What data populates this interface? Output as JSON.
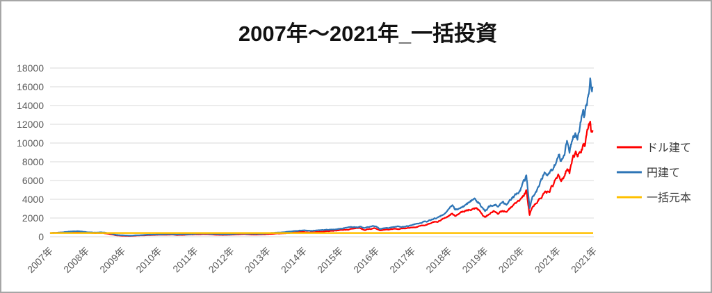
{
  "window": {
    "background_color": "#FFFFFF",
    "border_color": "#A6A6A6"
  },
  "chart_data": {
    "type": "line",
    "title": "2007年～2021年_一括投資",
    "xlabel": "",
    "ylabel": "",
    "ylim": [
      0,
      18000
    ],
    "x_range": [
      2007.0,
      2022.0
    ],
    "grid": true,
    "gridline_color": "#D9D9D9",
    "axis_label_color": "#595959",
    "legend_position": "right",
    "y_ticks": [
      0,
      2000,
      4000,
      6000,
      8000,
      10000,
      12000,
      14000,
      16000,
      18000
    ],
    "x_tick_labels": [
      "2007年",
      "2008年",
      "2009年",
      "2010年",
      "2011年",
      "2012年",
      "2013年",
      "2014年",
      "2015年",
      "2016年",
      "2017年",
      "2018年",
      "2019年",
      "2020年",
      "2021年",
      "2021年"
    ],
    "series": [
      {
        "name": "ドル建て",
        "color": "#FF0000",
        "points": [
          [
            2007.0,
            400
          ],
          [
            2007.15,
            420
          ],
          [
            2007.35,
            440
          ],
          [
            2007.55,
            480
          ],
          [
            2007.75,
            510
          ],
          [
            2007.9,
            460
          ],
          [
            2008.05,
            420
          ],
          [
            2008.25,
            380
          ],
          [
            2008.45,
            400
          ],
          [
            2008.6,
            330
          ],
          [
            2008.72,
            250
          ],
          [
            2008.8,
            160
          ],
          [
            2008.95,
            120
          ],
          [
            2009.1,
            100
          ],
          [
            2009.22,
            90
          ],
          [
            2009.4,
            130
          ],
          [
            2009.6,
            150
          ],
          [
            2009.75,
            175
          ],
          [
            2009.95,
            200
          ],
          [
            2010.15,
            215
          ],
          [
            2010.35,
            230
          ],
          [
            2010.5,
            190
          ],
          [
            2010.7,
            210
          ],
          [
            2010.9,
            240
          ],
          [
            2011.1,
            260
          ],
          [
            2011.3,
            270
          ],
          [
            2011.55,
            235
          ],
          [
            2011.75,
            195
          ],
          [
            2011.95,
            215
          ],
          [
            2012.15,
            255
          ],
          [
            2012.35,
            270
          ],
          [
            2012.55,
            245
          ],
          [
            2012.75,
            260
          ],
          [
            2012.95,
            285
          ],
          [
            2013.15,
            330
          ],
          [
            2013.4,
            380
          ],
          [
            2013.6,
            420
          ],
          [
            2013.8,
            480
          ],
          [
            2014.0,
            530
          ],
          [
            2014.15,
            500
          ],
          [
            2014.35,
            545
          ],
          [
            2014.6,
            590
          ],
          [
            2014.8,
            650
          ],
          [
            2015.0,
            700
          ],
          [
            2015.2,
            760
          ],
          [
            2015.4,
            840
          ],
          [
            2015.55,
            880
          ],
          [
            2015.68,
            720
          ],
          [
            2015.8,
            820
          ],
          [
            2015.95,
            860
          ],
          [
            2016.1,
            660
          ],
          [
            2016.3,
            760
          ],
          [
            2016.5,
            820
          ],
          [
            2016.7,
            860
          ],
          [
            2016.9,
            920
          ],
          [
            2017.1,
            1080
          ],
          [
            2017.3,
            1200
          ],
          [
            2017.5,
            1400
          ],
          [
            2017.7,
            1640
          ],
          [
            2017.9,
            2080
          ],
          [
            2018.05,
            2560
          ],
          [
            2018.1,
            2700
          ],
          [
            2018.17,
            2280
          ],
          [
            2018.3,
            2480
          ],
          [
            2018.45,
            2700
          ],
          [
            2018.6,
            2950
          ],
          [
            2018.73,
            3100
          ],
          [
            2018.85,
            2700
          ],
          [
            2018.95,
            2150
          ],
          [
            2019.0,
            2000
          ],
          [
            2019.1,
            2350
          ],
          [
            2019.25,
            2650
          ],
          [
            2019.35,
            2500
          ],
          [
            2019.5,
            2750
          ],
          [
            2019.6,
            2600
          ],
          [
            2019.7,
            2950
          ],
          [
            2019.85,
            3300
          ],
          [
            2020.0,
            3900
          ],
          [
            2020.1,
            4450
          ],
          [
            2020.14,
            4750
          ],
          [
            2020.18,
            3700
          ],
          [
            2020.23,
            2300
          ],
          [
            2020.3,
            3100
          ],
          [
            2020.4,
            3550
          ],
          [
            2020.5,
            4000
          ],
          [
            2020.58,
            4500
          ],
          [
            2020.65,
            4900
          ],
          [
            2020.7,
            4600
          ],
          [
            2020.8,
            5200
          ],
          [
            2020.9,
            5700
          ],
          [
            2020.97,
            6200
          ],
          [
            2021.05,
            6500
          ],
          [
            2021.1,
            6100
          ],
          [
            2021.2,
            7000
          ],
          [
            2021.27,
            7500
          ],
          [
            2021.33,
            7100
          ],
          [
            2021.42,
            8100
          ],
          [
            2021.5,
            8800
          ],
          [
            2021.55,
            8400
          ],
          [
            2021.62,
            9500
          ],
          [
            2021.7,
            10200
          ],
          [
            2021.74,
            9700
          ],
          [
            2021.8,
            10900
          ],
          [
            2021.86,
            11700
          ],
          [
            2021.9,
            12200
          ],
          [
            2021.93,
            11300
          ],
          [
            2021.97,
            11800
          ]
        ]
      },
      {
        "name": "円建て",
        "color": "#2E75B6",
        "points": [
          [
            2007.0,
            400
          ],
          [
            2007.15,
            430
          ],
          [
            2007.35,
            470
          ],
          [
            2007.55,
            540
          ],
          [
            2007.75,
            590
          ],
          [
            2007.9,
            530
          ],
          [
            2008.05,
            480
          ],
          [
            2008.25,
            430
          ],
          [
            2008.45,
            460
          ],
          [
            2008.6,
            380
          ],
          [
            2008.72,
            300
          ],
          [
            2008.8,
            200
          ],
          [
            2008.95,
            150
          ],
          [
            2009.1,
            130
          ],
          [
            2009.22,
            110
          ],
          [
            2009.4,
            160
          ],
          [
            2009.6,
            190
          ],
          [
            2009.75,
            220
          ],
          [
            2009.95,
            250
          ],
          [
            2010.15,
            270
          ],
          [
            2010.35,
            290
          ],
          [
            2010.5,
            240
          ],
          [
            2010.7,
            260
          ],
          [
            2010.9,
            300
          ],
          [
            2011.1,
            330
          ],
          [
            2011.3,
            340
          ],
          [
            2011.55,
            300
          ],
          [
            2011.75,
            250
          ],
          [
            2011.95,
            270
          ],
          [
            2012.15,
            320
          ],
          [
            2012.35,
            340
          ],
          [
            2012.55,
            310
          ],
          [
            2012.75,
            330
          ],
          [
            2012.95,
            360
          ],
          [
            2013.15,
            420
          ],
          [
            2013.4,
            480
          ],
          [
            2013.6,
            530
          ],
          [
            2013.8,
            600
          ],
          [
            2014.0,
            660
          ],
          [
            2014.15,
            620
          ],
          [
            2014.35,
            680
          ],
          [
            2014.6,
            740
          ],
          [
            2014.8,
            820
          ],
          [
            2015.0,
            880
          ],
          [
            2015.2,
            950
          ],
          [
            2015.4,
            1050
          ],
          [
            2015.55,
            1100
          ],
          [
            2015.68,
            900
          ],
          [
            2015.8,
            1030
          ],
          [
            2015.95,
            1080
          ],
          [
            2016.1,
            830
          ],
          [
            2016.3,
            950
          ],
          [
            2016.5,
            1030
          ],
          [
            2016.7,
            1080
          ],
          [
            2016.9,
            1150
          ],
          [
            2017.1,
            1350
          ],
          [
            2017.3,
            1500
          ],
          [
            2017.5,
            1750
          ],
          [
            2017.7,
            2050
          ],
          [
            2017.9,
            2600
          ],
          [
            2018.05,
            3200
          ],
          [
            2018.1,
            3400
          ],
          [
            2018.17,
            2850
          ],
          [
            2018.3,
            3100
          ],
          [
            2018.45,
            3400
          ],
          [
            2018.6,
            3700
          ],
          [
            2018.73,
            4000
          ],
          [
            2018.85,
            3500
          ],
          [
            2018.95,
            2900
          ],
          [
            2019.0,
            2750
          ],
          [
            2019.1,
            3200
          ],
          [
            2019.25,
            3600
          ],
          [
            2019.35,
            3400
          ],
          [
            2019.5,
            3700
          ],
          [
            2019.6,
            3500
          ],
          [
            2019.7,
            4000
          ],
          [
            2019.85,
            4500
          ],
          [
            2020.0,
            5300
          ],
          [
            2020.1,
            6100
          ],
          [
            2020.14,
            6700
          ],
          [
            2020.18,
            5200
          ],
          [
            2020.23,
            3150
          ],
          [
            2020.3,
            4200
          ],
          [
            2020.4,
            4800
          ],
          [
            2020.5,
            5400
          ],
          [
            2020.58,
            6100
          ],
          [
            2020.65,
            6600
          ],
          [
            2020.7,
            6200
          ],
          [
            2020.8,
            7000
          ],
          [
            2020.9,
            7600
          ],
          [
            2020.97,
            8300
          ],
          [
            2021.05,
            8700
          ],
          [
            2021.1,
            8200
          ],
          [
            2021.2,
            9300
          ],
          [
            2021.27,
            10000
          ],
          [
            2021.33,
            9400
          ],
          [
            2021.42,
            10700
          ],
          [
            2021.5,
            11600
          ],
          [
            2021.55,
            11100
          ],
          [
            2021.62,
            12500
          ],
          [
            2021.7,
            13400
          ],
          [
            2021.74,
            12800
          ],
          [
            2021.8,
            14300
          ],
          [
            2021.86,
            15300
          ],
          [
            2021.9,
            16200
          ],
          [
            2021.93,
            15200
          ],
          [
            2021.97,
            15800
          ]
        ]
      },
      {
        "name": "一括元本",
        "color": "#FFC000",
        "points": [
          [
            2007.0,
            400
          ],
          [
            2021.98,
            400
          ]
        ]
      }
    ]
  }
}
